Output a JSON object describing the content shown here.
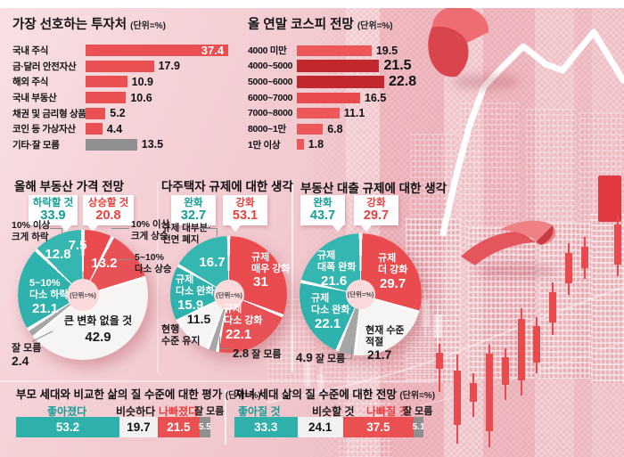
{
  "palette": {
    "accent_red": "#ea5052",
    "accent_dark_red": "#c2272d",
    "accent_teal": "#2fb0ab",
    "accent_gray": "#8f8f8f",
    "teal_text": "#149e99",
    "red_text": "#e8403f",
    "background_pink": "#f3cbd0"
  },
  "chart_data": [
    {
      "id": "preferred-investments",
      "type": "bar",
      "orientation": "horizontal",
      "title": "가장 선호하는 투자처",
      "unit": "(단위=%)",
      "categories": [
        "국내 주식",
        "금·달러 안전자산",
        "해외 주식",
        "국내 부동산",
        "채권 및 금리형 상품",
        "코인 등 가상자산",
        "기타·잘 모름"
      ],
      "values": [
        37.4,
        17.9,
        10.9,
        10.6,
        5.2,
        4.4,
        13.5
      ],
      "bar_colors": [
        "#ea5052",
        "#ea5052",
        "#ea5052",
        "#ea5052",
        "#ea5052",
        "#ea5052",
        "#8f8f8f"
      ],
      "xmax": 40
    },
    {
      "id": "kospi-year-end-forecast",
      "type": "bar",
      "orientation": "horizontal",
      "title": "올 연말 코스피 전망",
      "unit": "(단위=%)",
      "categories": [
        "4000 미만",
        "4000~5000",
        "5000~6000",
        "6000~7000",
        "7000~8000",
        "8000~1만",
        "1만 이상"
      ],
      "values": [
        19.5,
        21.5,
        22.8,
        16.5,
        11.1,
        6.8,
        1.8
      ],
      "bar_colors": [
        "#ed5759",
        "#c2272d",
        "#c2272d",
        "#e84a4d",
        "#ed5759",
        "#ed5759",
        "#ed5759"
      ],
      "emphasized": [
        false,
        true,
        true,
        false,
        false,
        false,
        false
      ],
      "xmax": 40
    },
    {
      "id": "housing-price-outlook",
      "type": "pie",
      "title": "올해 부동산 가격 전망",
      "unit": "(단위=%)",
      "callouts": [
        {
          "label": "하락할 것",
          "value": "33.9",
          "color": "#149e99"
        },
        {
          "label": "상승할 것",
          "value": "20.8",
          "color": "#e8403f"
        }
      ],
      "slices": [
        {
          "label": "10% 이상\n크게 상승",
          "value": 7.5,
          "color": "#ea4b4f"
        },
        {
          "label": "5~10%\n다소 상승",
          "value": 13.2,
          "color": "#e85155"
        },
        {
          "label": "큰 변화 없을 것",
          "value": 42.9,
          "color": "#f7f5f4"
        },
        {
          "label": "잘 모름",
          "value": 2.4,
          "color": "#a6a6a6"
        },
        {
          "label": "5~10%\n다소 하락",
          "value": 21.1,
          "color": "#2fb2ad"
        },
        {
          "label": "10% 이상\n크게 하락",
          "value": 12.8,
          "color": "#35b6b1"
        }
      ]
    },
    {
      "id": "multi-homeowner-regulation-opinion",
      "type": "pie",
      "title": "다주택자 규제에 대한 생각",
      "unit": "(단위=%)",
      "callouts": [
        {
          "label": "완화",
          "value": "32.7",
          "color": "#149e99"
        },
        {
          "label": "강화",
          "value": "53.1",
          "color": "#e8403f"
        }
      ],
      "slices": [
        {
          "label": "규제\n매우 강화",
          "value": 31,
          "color": "#ea4b4f"
        },
        {
          "label": "규제\n다소 강화",
          "value": 22.1,
          "color": "#e85155"
        },
        {
          "label": "잘 모름",
          "value": 2.8,
          "color": "#a6a6a6"
        },
        {
          "label": "현행\n수준 유지",
          "value": 11.5,
          "color": "#f7f5f4"
        },
        {
          "label": "규제\n다소 완화",
          "value": 15.9,
          "color": "#2fb2ad"
        },
        {
          "label": "규제 대부분·\n전면 폐지",
          "value": 16.7,
          "color": "#35b6b1"
        }
      ]
    },
    {
      "id": "loan-regulation-opinion",
      "type": "pie",
      "title": "부동산 대출 규제에 대한 생각",
      "unit": "(단위=%)",
      "callouts": [
        {
          "label": "완화",
          "value": "43.7",
          "color": "#149e99"
        },
        {
          "label": "강화",
          "value": "29.7",
          "color": "#e8403f"
        }
      ],
      "slices": [
        {
          "label": "규제\n더 강화",
          "value": 29.7,
          "color": "#ea4b4f"
        },
        {
          "label": "현재 수준\n적절",
          "value": 21.7,
          "color": "#f7f5f4"
        },
        {
          "label": "잘 모름",
          "value": 4.9,
          "color": "#a6a6a6"
        },
        {
          "label": "규제\n다소 완화",
          "value": 22.1,
          "color": "#2fb2ad"
        },
        {
          "label": "규제\n대폭 완화",
          "value": 21.6,
          "color": "#35b6b1"
        }
      ]
    },
    {
      "id": "life-quality-vs-parents",
      "type": "stacked-bar",
      "title": "부모 세대와 비교한 삶의 질 수준에 대한 평가",
      "unit": "(단위=%)",
      "categories": [
        "좋아졌다",
        "비슷하다",
        "나빠졌다",
        "잘 모름"
      ],
      "values": [
        53.2,
        19.7,
        21.5,
        5.5
      ],
      "colors": [
        "#2fb0ab",
        "#f4f2f1",
        "#ea4f51",
        "#8f8f8f"
      ]
    },
    {
      "id": "children-life-quality-outlook",
      "type": "stacked-bar",
      "title": "자녀 세대 삶의 질 수준에 대한 전망",
      "unit": "(단위=%)",
      "categories": [
        "좋아질 것",
        "비슷할 것",
        "나빠질 것",
        "잘 모름"
      ],
      "values": [
        33.3,
        24.1,
        37.5,
        5.1
      ],
      "colors": [
        "#2fb0ab",
        "#f4f2f1",
        "#ea4f51",
        "#8f8f8f"
      ]
    }
  ]
}
